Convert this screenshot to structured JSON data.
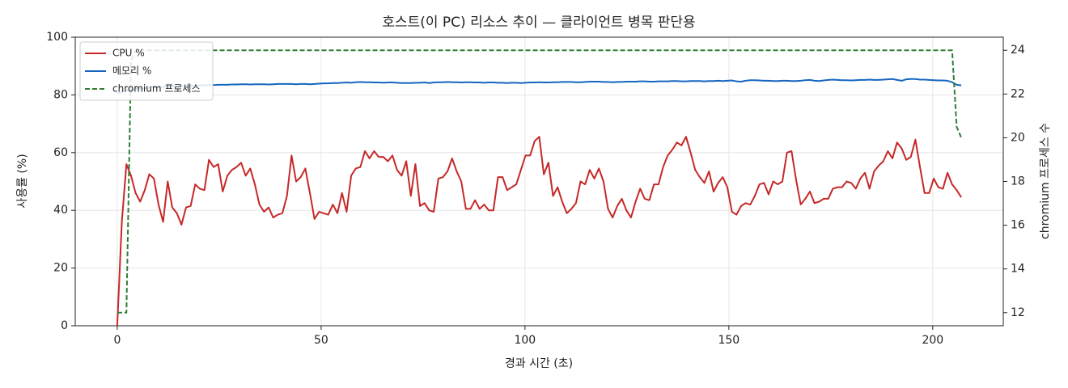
{
  "chart_data": {
    "type": "line",
    "title": "호스트(이 PC) 리소스 추이 — 클라이언트 병목 판단용",
    "xlabel": "경과 시간 (초)",
    "ylabel": "사용률 (%)",
    "y2label": "chromium 프로세스 수",
    "x": [
      0,
      1.125,
      2.25,
      3.375,
      4.5,
      5.625,
      6.75,
      7.875,
      9,
      10.125,
      11.25,
      12.375,
      13.5,
      14.625,
      15.75,
      16.875,
      18,
      19.125,
      20.25,
      21.375,
      22.5,
      23.625,
      24.75,
      25.875,
      27,
      28.125,
      29.25,
      30.375,
      31.5,
      32.625,
      33.75,
      34.875,
      36,
      37.125,
      38.25,
      39.375,
      40.5,
      41.625,
      42.75,
      43.875,
      45,
      46.125,
      47.25,
      48.375,
      49.5,
      50.625,
      51.75,
      52.875,
      54,
      55.125,
      56.25,
      57.375,
      58.5,
      59.625,
      60.75,
      61.875,
      63,
      64.125,
      65.25,
      66.375,
      67.5,
      68.625,
      69.75,
      70.875,
      72,
      73.125,
      74.25,
      75.375,
      76.5,
      77.625,
      78.75,
      79.875,
      81,
      82.125,
      83.25,
      84.375,
      85.5,
      86.625,
      87.75,
      88.875,
      90,
      91.125,
      92.25,
      93.375,
      94.5,
      95.625,
      96.75,
      97.875,
      99,
      100.125,
      101.25,
      102.375,
      103.5,
      104.625,
      105.75,
      106.875,
      108,
      109.125,
      110.25,
      111.375,
      112.5,
      113.625,
      114.75,
      115.875,
      117,
      118.125,
      119.25,
      120.375,
      121.5,
      122.625,
      123.75,
      124.875,
      126,
      127.125,
      128.25,
      129.375,
      130.5,
      131.625,
      132.75,
      133.875,
      135,
      136.125,
      137.25,
      138.375,
      139.5,
      140.625,
      141.75,
      142.875,
      144,
      145.125,
      146.25,
      147.375,
      148.5,
      149.625,
      150.75,
      151.875,
      153,
      154.125,
      155.25,
      156.375,
      157.5,
      158.625,
      159.75,
      160.875,
      162,
      163.125,
      164.25,
      165.375,
      166.5,
      167.625,
      168.75,
      169.875,
      171,
      172.125,
      173.25,
      174.375,
      175.5,
      176.625,
      177.75,
      178.875,
      180,
      181.125,
      182.25,
      183.375,
      184.5,
      185.625,
      186.75,
      187.875,
      189,
      190.125,
      191.25,
      192.375,
      193.5,
      194.625,
      195.75,
      196.875,
      198,
      199.125,
      200.25,
      201.375,
      202.5,
      203.625,
      204.75,
      205.875,
      207
    ],
    "series": [
      {
        "name": "CPU %",
        "color": "#c62828",
        "values": [
          0,
          36,
          56,
          52,
          46,
          43,
          47,
          52.5,
          51,
          42,
          36,
          50,
          41,
          39,
          35,
          41,
          41.5,
          49,
          47.5,
          47,
          57.5,
          55,
          56,
          46.5,
          52,
          54,
          55,
          56.5,
          52,
          54.5,
          49,
          42,
          39.5,
          41,
          37.5,
          38.5,
          39,
          45,
          59,
          50,
          51.5,
          54.5,
          46,
          37,
          39.5,
          39,
          38.5,
          42,
          39,
          46,
          39.5,
          52,
          54.5,
          55,
          60.5,
          58,
          60.5,
          58.5,
          58.5,
          57,
          59,
          54,
          52,
          57,
          45,
          56,
          41.5,
          42.5,
          40,
          39.5,
          51,
          51.5,
          53.5,
          58,
          53.5,
          50,
          40.5,
          40.5,
          43.5,
          40.5,
          42,
          40,
          40,
          51.5,
          51.5,
          47,
          48,
          49,
          54,
          59,
          59,
          64,
          65.5,
          52.5,
          56.5,
          45,
          48,
          43,
          39,
          40.5,
          42.5,
          50,
          49,
          54,
          51,
          54.5,
          50,
          40.5,
          37.5,
          41.5,
          44,
          40,
          37.5,
          43,
          47.5,
          44,
          43.5,
          49,
          49,
          55,
          59,
          61,
          63.5,
          62.5,
          65.5,
          60,
          54,
          51.5,
          49.5,
          53.5,
          46.5,
          49.5,
          51.5,
          48,
          39.5,
          38.5,
          41.5,
          42.5,
          42,
          45,
          49,
          49.5,
          45.5,
          50,
          49,
          50,
          60,
          60.5,
          50.5,
          42,
          44,
          46.5,
          42.5,
          43,
          44,
          44,
          47.5,
          48,
          48,
          50,
          49.5,
          47.5,
          51,
          53,
          47.5,
          53.5,
          55.5,
          57,
          60.5,
          58,
          63.5,
          61.5,
          57.5,
          58.5,
          64.5,
          55,
          46,
          46,
          51,
          48,
          47.5,
          53,
          49,
          47,
          44.5
        ]
      },
      {
        "name": "메모리 %",
        "color": "#1565c0",
        "values": [
          80.5,
          81,
          81.5,
          81.8,
          82,
          82.2,
          82.3,
          82.5,
          82.6,
          82.7,
          82.8,
          82.9,
          83,
          83,
          83.1,
          83.1,
          83.2,
          83.2,
          83.3,
          83.3,
          83.4,
          83.4,
          83.5,
          83.5,
          83.5,
          83.6,
          83.6,
          83.7,
          83.7,
          83.6,
          83.7,
          83.7,
          83.7,
          83.6,
          83.7,
          83.8,
          83.8,
          83.8,
          83.8,
          83.7,
          83.8,
          83.8,
          83.7,
          83.8,
          83.9,
          84,
          84,
          84.1,
          84.1,
          84.2,
          84.3,
          84.2,
          84.4,
          84.5,
          84.4,
          84.4,
          84.3,
          84.3,
          84.2,
          84.3,
          84.3,
          84.2,
          84.1,
          84.1,
          84.1,
          84.2,
          84.2,
          84.3,
          84.1,
          84.3,
          84.4,
          84.4,
          84.5,
          84.4,
          84.4,
          84.3,
          84.4,
          84.4,
          84.3,
          84.3,
          84.2,
          84.3,
          84.3,
          84.2,
          84.2,
          84.1,
          84.2,
          84.2,
          84.1,
          84.2,
          84.3,
          84.3,
          84.4,
          84.3,
          84.3,
          84.4,
          84.4,
          84.5,
          84.5,
          84.5,
          84.4,
          84.4,
          84.5,
          84.6,
          84.6,
          84.6,
          84.5,
          84.5,
          84.4,
          84.5,
          84.5,
          84.6,
          84.6,
          84.6,
          84.7,
          84.7,
          84.6,
          84.6,
          84.7,
          84.7,
          84.7,
          84.8,
          84.8,
          84.7,
          84.7,
          84.8,
          84.8,
          84.8,
          84.7,
          84.8,
          84.8,
          84.9,
          84.8,
          84.9,
          85,
          84.7,
          84.6,
          84.9,
          85.1,
          85.1,
          85,
          84.9,
          84.9,
          84.8,
          84.8,
          84.9,
          84.9,
          84.8,
          84.8,
          84.9,
          85.1,
          85.2,
          84.9,
          84.8,
          85,
          85.2,
          85.3,
          85.2,
          85.1,
          85.1,
          85,
          85.1,
          85.2,
          85.2,
          85.3,
          85.2,
          85.2,
          85.3,
          85.4,
          85.5,
          85.2,
          84.9,
          85.4,
          85.5,
          85.5,
          85.3,
          85.3,
          85.2,
          85.1,
          85,
          85,
          84.9,
          84.4,
          83.5,
          83.3
        ]
      },
      {
        "name": "chromium 프로세스",
        "color": "#2e7d32",
        "dashed": true,
        "axis": "y2",
        "values": [
          12,
          12,
          12,
          23.5,
          24,
          24,
          24,
          24,
          24,
          24,
          24,
          24,
          24,
          24,
          24,
          24,
          24,
          24,
          24,
          24,
          24,
          24,
          24,
          24,
          24,
          24,
          24,
          24,
          24,
          24,
          24,
          24,
          24,
          24,
          24,
          24,
          24,
          24,
          24,
          24,
          24,
          24,
          24,
          24,
          24,
          24,
          24,
          24,
          24,
          24,
          24,
          24,
          24,
          24,
          24,
          24,
          24,
          24,
          24,
          24,
          24,
          24,
          24,
          24,
          24,
          24,
          24,
          24,
          24,
          24,
          24,
          24,
          24,
          24,
          24,
          24,
          24,
          24,
          24,
          24,
          24,
          24,
          24,
          24,
          24,
          24,
          24,
          24,
          24,
          24,
          24,
          24,
          24,
          24,
          24,
          24,
          24,
          24,
          24,
          24,
          24,
          24,
          24,
          24,
          24,
          24,
          24,
          24,
          24,
          24,
          24,
          24,
          24,
          24,
          24,
          24,
          24,
          24,
          24,
          24,
          24,
          24,
          24,
          24,
          24,
          24,
          24,
          24,
          24,
          24,
          24,
          24,
          24,
          24,
          24,
          24,
          24,
          24,
          24,
          24,
          24,
          24,
          24,
          24,
          24,
          24,
          24,
          24,
          24,
          24,
          24,
          24,
          24,
          24,
          24,
          24,
          24,
          24,
          24,
          24,
          24,
          24,
          24,
          24,
          24,
          24,
          24,
          24,
          24,
          24,
          24,
          24,
          24,
          24,
          24,
          24,
          24,
          24,
          24,
          24,
          24,
          24,
          24,
          20.5,
          20
        ]
      }
    ],
    "xlim": [
      -10.3,
      217.3
    ],
    "xticks": [
      0,
      50,
      100,
      150,
      200
    ],
    "ylim": [
      0,
      100
    ],
    "yticks": [
      0,
      20,
      40,
      60,
      80,
      100
    ],
    "y2lim": [
      11.4,
      24.6
    ],
    "y2ticks": [
      12,
      14,
      16,
      18,
      20,
      22,
      24
    ],
    "grid": true,
    "legend": "upper-left"
  }
}
